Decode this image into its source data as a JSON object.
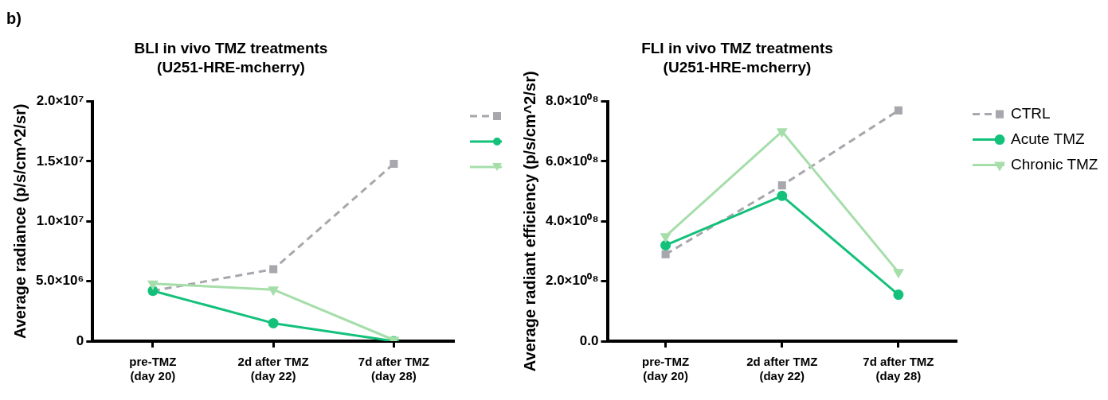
{
  "chart_data": [
    {
      "type": "line",
      "title": "BLI in vivo TMZ treatments",
      "subtitle": "(U251-HRE-mcherry)",
      "ylabel": "Average radiance (p/s/cm^2/sr)",
      "annotations": [
        "b)"
      ],
      "categories": [
        "pre-TMZ\n(day 20)",
        "2d after TMZ\n(day 22)",
        "7d after TMZ\n(day 28)"
      ],
      "series": [
        {
          "color": "#a7a7ad",
          "marker": "square",
          "line_style": "dashed",
          "values": [
            4200000,
            6000000,
            14800000
          ]
        },
        {
          "color": "#14c17b",
          "marker": "circle",
          "line_style": "solid",
          "values": [
            4200000,
            1500000,
            0
          ]
        },
        {
          "color": "#a6deaa",
          "marker": "triangle",
          "line_style": "solid",
          "values": [
            4800000,
            4300000,
            100000
          ]
        }
      ],
      "ylim": [
        0,
        20000000
      ],
      "yticks": [
        {
          "value": 0,
          "label": "0"
        },
        {
          "value": 5000000,
          "label": "5.0×10⁶"
        },
        {
          "value": 10000000,
          "label": "1.0×10⁷"
        },
        {
          "value": 15000000,
          "label": "1.5×10⁷"
        },
        {
          "value": 20000000,
          "label": "2.0×10⁷"
        }
      ],
      "grid": false,
      "legend": "right"
    },
    {
      "type": "line",
      "title": "FLI in vivo TMZ treatments",
      "subtitle": "(U251-HRE-mcherry)",
      "ylabel": "Average radiant efficiency (p/s/cm^2/sr)",
      "categories": [
        "pre-TMZ\n(day 20)",
        "2d after TMZ\n(day 22)",
        "7d after TMZ\n(day 28)"
      ],
      "series": [
        {
          "name": "CTRL",
          "color": "#a7a7ad",
          "marker": "square",
          "line_style": "dashed",
          "values": [
            290000000,
            520000000,
            770000000
          ]
        },
        {
          "name": "Acute TMZ",
          "color": "#14c17b",
          "marker": "circle",
          "line_style": "solid",
          "values": [
            320000000,
            485000000,
            155000000
          ]
        },
        {
          "name": "Chronic TMZ",
          "color": "#a6deaa",
          "marker": "triangle",
          "line_style": "solid",
          "values": [
            350000000,
            700000000,
            230000000
          ]
        }
      ],
      "ylim": [
        0,
        800000000
      ],
      "yticks": [
        {
          "value": 0,
          "label": "0.0"
        },
        {
          "value": 200000000,
          "label": "2.0×10⁰⁸"
        },
        {
          "value": 400000000,
          "label": "4.0×10⁰⁸"
        },
        {
          "value": 600000000,
          "label": "6.0×10⁰⁸"
        },
        {
          "value": 800000000,
          "label": "8.0×10⁰⁸"
        }
      ],
      "grid": false,
      "legend": "right"
    }
  ]
}
